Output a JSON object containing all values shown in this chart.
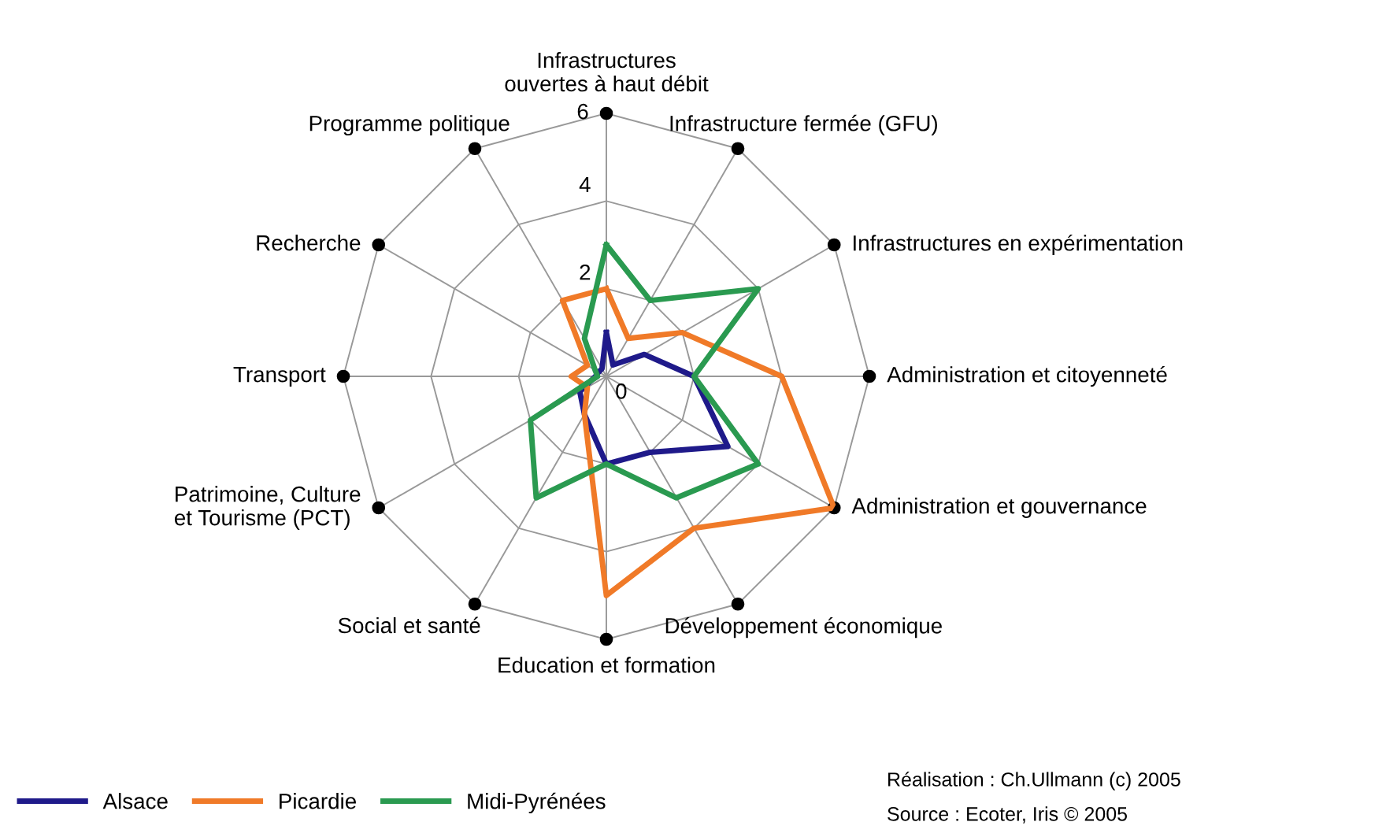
{
  "chart_data": {
    "type": "radar",
    "categories": [
      "Infrastructures\nouvertes à haut débit",
      "Infrastructure fermée (GFU)",
      "Infrastructures en expérimentation",
      "Administration et citoyenneté",
      "Administration et gouvernance",
      "Développement économique",
      "Education et formation",
      "Social et santé",
      "Patrimoine, Culture\net Tourisme (PCT)",
      "Transport",
      "Recherche",
      "Programme politique"
    ],
    "series": [
      {
        "name": "Alsace",
        "color": "#1f1a8a",
        "values": [
          1.0,
          0.3,
          1.0,
          2.0,
          3.2,
          2.0,
          2.0,
          1.0,
          0.7,
          0.25,
          0.2,
          0.2
        ]
      },
      {
        "name": "Picardie",
        "color": "#f07a28",
        "values": [
          2.0,
          1.0,
          2.0,
          4.0,
          6.0,
          4.0,
          5.0,
          1.0,
          0.5,
          0.8,
          0.5,
          2.0
        ]
      },
      {
        "name": "Midi-Pyrénées",
        "color": "#2a9a50",
        "values": [
          3.0,
          2.0,
          4.0,
          2.0,
          4.0,
          3.2,
          2.0,
          3.2,
          2.0,
          0.2,
          0.3,
          1.0
        ]
      }
    ],
    "ylim": [
      0,
      6
    ],
    "yticks": [
      0,
      2,
      4,
      6
    ],
    "grid": true,
    "legend": "bottom left",
    "line_style": "solid",
    "marker": "none",
    "annotations": [
      "Réalisation : Ch.Ullmann (c) 2005",
      "Source : Ecoter, Iris © 2005"
    ]
  }
}
